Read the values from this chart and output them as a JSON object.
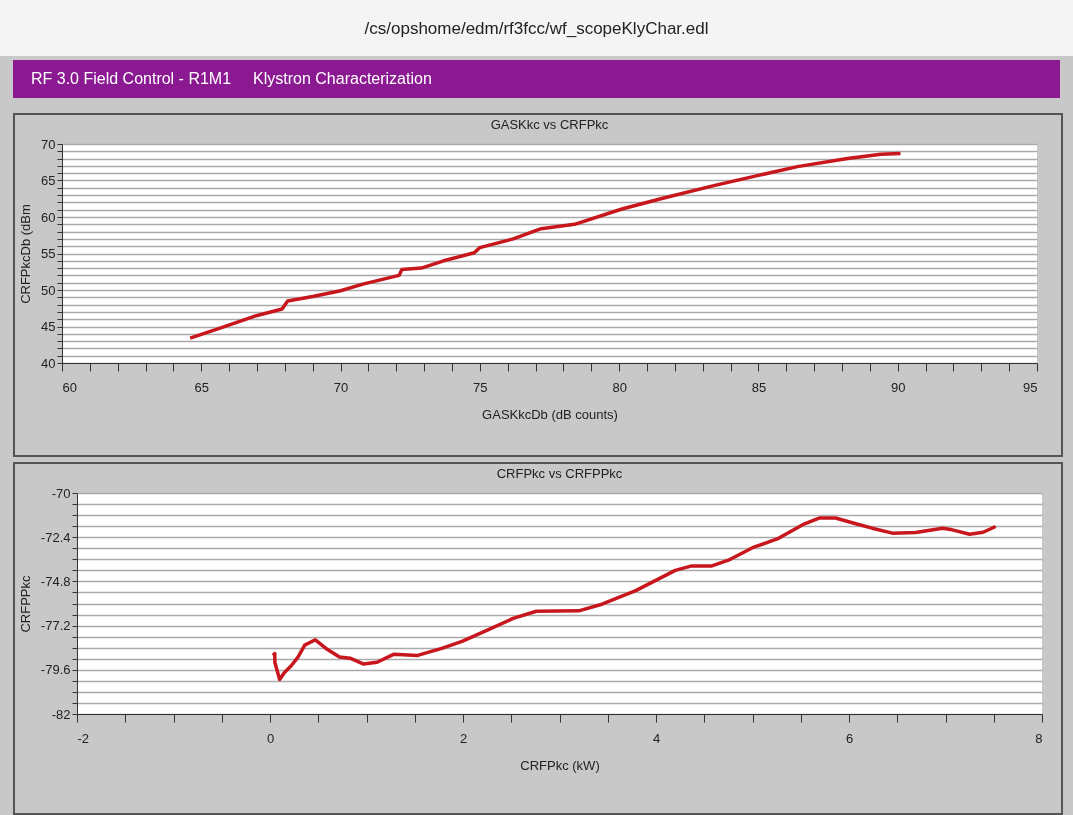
{
  "chart_data": [
    {
      "type": "line",
      "title": "GASKkc vs CRFPkc",
      "xlabel": "GASKkcDb (dB counts)",
      "ylabel": "CRFPkcDb (dBm",
      "annotations": [
        "/cs/opshome/edm/rf3fcc/wf_scopeKlyChar.edl",
        "RF 3.0 Field Control - R1M1",
        "Klystron Characterization"
      ],
      "series": [
        {
          "color": "#c8161d",
          "x": [
            64.6,
            65.7,
            66.9,
            67.9,
            68.1,
            69.0,
            70.0,
            70.8,
            72.1,
            72.2,
            72.9,
            73.7,
            74.8,
            75.0,
            76.2,
            77.2,
            78.4,
            80.1,
            81.6,
            83.4,
            85.0,
            86.4,
            88.2,
            89.4,
            90.1
          ],
          "values": [
            43.4,
            44.8,
            46.4,
            47.4,
            48.5,
            49.1,
            49.9,
            50.8,
            52.0,
            52.8,
            53.0,
            54.0,
            55.1,
            55.8,
            57.0,
            58.4,
            59.0,
            61.1,
            62.6,
            64.3,
            65.7,
            66.9,
            68.0,
            68.6,
            68.7
          ]
        }
      ],
      "xlim": [
        60,
        95
      ],
      "ylim": [
        40,
        70
      ],
      "xticks": [
        60,
        {
          "value": 61,
          "label": null
        },
        {
          "value": 62,
          "label": null
        },
        {
          "value": 63,
          "label": null
        },
        {
          "value": 64,
          "label": null
        },
        65,
        {
          "value": 66,
          "label": null
        },
        {
          "value": 67,
          "label": null
        },
        {
          "value": 68,
          "label": null
        },
        {
          "value": 69,
          "label": null
        },
        70,
        {
          "value": 71,
          "label": null
        },
        {
          "value": 72,
          "label": null
        },
        {
          "value": 73,
          "label": null
        },
        {
          "value": 74,
          "label": null
        },
        75,
        {
          "value": 76,
          "label": null
        },
        {
          "value": 77,
          "label": null
        },
        {
          "value": 78,
          "label": null
        },
        {
          "value": 79,
          "label": null
        },
        80,
        {
          "value": 81,
          "label": null
        },
        {
          "value": 82,
          "label": null
        },
        {
          "value": 83,
          "label": null
        },
        {
          "value": 84,
          "label": null
        },
        85,
        {
          "value": 86,
          "label": null
        },
        {
          "value": 87,
          "label": null
        },
        {
          "value": 88,
          "label": null
        },
        {
          "value": 89,
          "label": null
        },
        90,
        {
          "value": 91,
          "label": null
        },
        {
          "value": 92,
          "label": null
        },
        {
          "value": 93,
          "label": null
        },
        {
          "value": 94,
          "label": null
        },
        95
      ],
      "yticks": [
        40,
        {
          "value": 41,
          "label": null
        },
        {
          "value": 42,
          "label": null
        },
        {
          "value": 43,
          "label": null
        },
        {
          "value": 44,
          "label": null
        },
        45,
        {
          "value": 46,
          "label": null
        },
        {
          "value": 47,
          "label": null
        },
        {
          "value": 48,
          "label": null
        },
        {
          "value": 49,
          "label": null
        },
        50,
        {
          "value": 51,
          "label": null
        },
        {
          "value": 52,
          "label": null
        },
        {
          "value": 53,
          "label": null
        },
        {
          "value": 54,
          "label": null
        },
        55,
        {
          "value": 56,
          "label": null
        },
        {
          "value": 57,
          "label": null
        },
        {
          "value": 58,
          "label": null
        },
        {
          "value": 59,
          "label": null
        },
        60,
        {
          "value": 61,
          "label": null
        },
        {
          "value": 62,
          "label": null
        },
        {
          "value": 63,
          "label": null
        },
        {
          "value": 64,
          "label": null
        },
        65,
        {
          "value": 66,
          "label": null
        },
        {
          "value": 67,
          "label": null
        },
        {
          "value": 68,
          "label": null
        },
        {
          "value": 69,
          "label": null
        },
        70
      ],
      "grid": "y"
    },
    {
      "type": "line",
      "title": "CRFPkc vs CRFPPkc",
      "xlabel": "CRFPkc (kW)",
      "ylabel": "CRFPPkc",
      "series": [
        {
          "color": "#c8161d",
          "x": [
            0.03,
            0.05,
            0.05,
            0.1,
            0.15,
            0.22,
            0.29,
            0.36,
            0.47,
            0.58,
            0.72,
            0.83,
            0.97,
            1.11,
            1.28,
            1.53,
            1.78,
            1.99,
            2.27,
            2.52,
            2.76,
            3.2,
            3.44,
            3.79,
            4.2,
            4.37,
            4.58,
            4.75,
            5.0,
            5.27,
            5.52,
            5.69,
            5.86,
            6.07,
            6.24,
            6.45,
            6.69,
            6.97,
            7.07,
            7.25,
            7.39,
            7.52
          ],
          "values": [
            -78.82,
            -78.72,
            -79.19,
            -80.13,
            -79.75,
            -79.38,
            -78.91,
            -78.26,
            -77.97,
            -78.44,
            -78.91,
            -78.97,
            -79.29,
            -79.19,
            -78.76,
            -78.82,
            -78.44,
            -78.06,
            -77.41,
            -76.81,
            -76.42,
            -76.4,
            -76.04,
            -75.3,
            -74.2,
            -73.96,
            -73.96,
            -73.65,
            -72.97,
            -72.46,
            -71.72,
            -71.36,
            -71.36,
            -71.67,
            -71.91,
            -72.18,
            -72.15,
            -71.91,
            -72.0,
            -72.24,
            -72.13,
            -71.82
          ]
        }
      ],
      "xlim": [
        -2,
        8
      ],
      "ylim": [
        -82,
        -70
      ],
      "xticks": [
        -2,
        {
          "value": -1.5,
          "label": null
        },
        {
          "value": -1,
          "label": null
        },
        {
          "value": -0.5,
          "label": null
        },
        0,
        {
          "value": 0.5,
          "label": null
        },
        {
          "value": 1,
          "label": null
        },
        {
          "value": 1.5,
          "label": null
        },
        2,
        {
          "value": 2.5,
          "label": null
        },
        {
          "value": 3,
          "label": null
        },
        {
          "value": 3.5,
          "label": null
        },
        4,
        {
          "value": 4.5,
          "label": null
        },
        {
          "value": 5,
          "label": null
        },
        {
          "value": 5.5,
          "label": null
        },
        6,
        {
          "value": 6.5,
          "label": null
        },
        {
          "value": 7,
          "label": null
        },
        {
          "value": 7.5,
          "label": null
        },
        8
      ],
      "yticks": [
        -82,
        {
          "value": -81.4,
          "label": null
        },
        {
          "value": -80.8,
          "label": null
        },
        {
          "value": -80.2,
          "label": null
        },
        -79.6,
        {
          "value": -79,
          "label": null
        },
        {
          "value": -78.4,
          "label": null
        },
        {
          "value": -77.8,
          "label": null
        },
        -77.2,
        {
          "value": -76.6,
          "label": null
        },
        {
          "value": -76,
          "label": null
        },
        {
          "value": -75.4,
          "label": null
        },
        -74.8,
        {
          "value": -74.2,
          "label": null
        },
        {
          "value": -73.6,
          "label": null
        },
        {
          "value": -73,
          "label": null
        },
        -72.4,
        {
          "value": -71.8,
          "label": null
        },
        {
          "value": -71.2,
          "label": null
        },
        {
          "value": -70.6,
          "label": null
        },
        -70
      ],
      "grid": "y"
    }
  ]
}
